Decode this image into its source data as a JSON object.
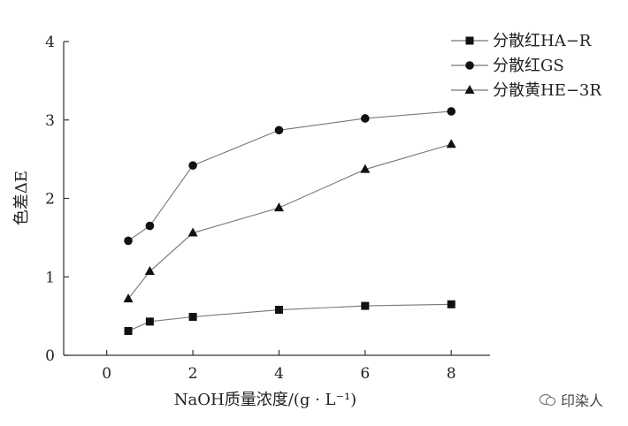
{
  "chart_data": {
    "type": "line",
    "xlabel": "NaOH质量浓度/(g · L⁻¹)",
    "ylabel": "色差ΔE",
    "xlim": [
      -1,
      8.9
    ],
    "ylim": [
      0,
      4
    ],
    "xticks": [
      0,
      2,
      4,
      6,
      8
    ],
    "yticks": [
      0,
      1,
      2,
      3,
      4
    ],
    "grid": false,
    "legend_position": "top-right",
    "series": [
      {
        "name": "分散红HA−R",
        "marker": "square",
        "x": [
          0.5,
          1,
          2,
          4,
          6,
          8
        ],
        "y": [
          0.31,
          0.43,
          0.49,
          0.58,
          0.63,
          0.65
        ]
      },
      {
        "name": "分散红GS",
        "marker": "circle",
        "x": [
          0.5,
          1,
          2,
          4,
          6,
          8
        ],
        "y": [
          1.46,
          1.65,
          2.42,
          2.87,
          3.02,
          3.11
        ]
      },
      {
        "name": "分散黄HE−3R",
        "marker": "triangle",
        "x": [
          0.5,
          1,
          2,
          4,
          6,
          8
        ],
        "y": [
          0.72,
          1.07,
          1.56,
          1.88,
          2.37,
          2.69
        ]
      }
    ]
  },
  "watermark": {
    "text": "印染人",
    "icon": "wechat-icon"
  }
}
